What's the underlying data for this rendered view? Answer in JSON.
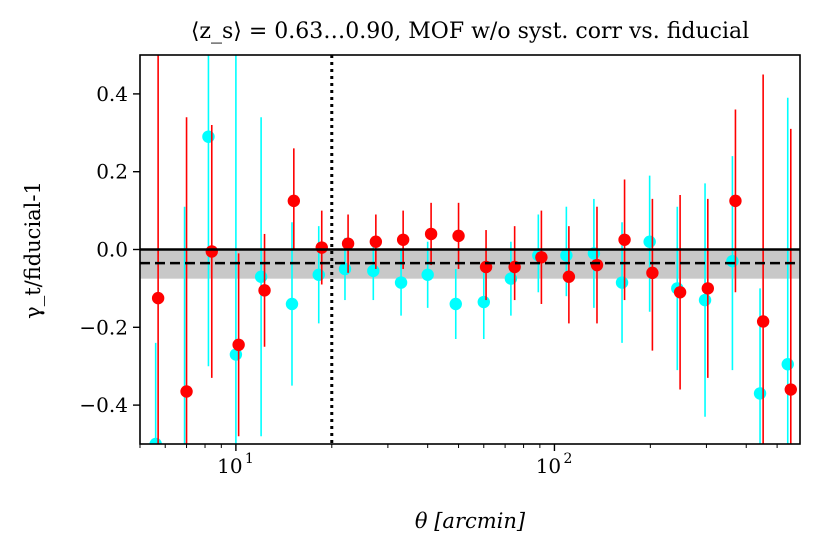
{
  "chart_data": {
    "type": "scatter",
    "title": "⟨z_s⟩ = 0.63…0.90, MOF w/o syst. corr vs. fiducial",
    "xlabel": "θ [arcmin]",
    "ylabel": "γ_t/fiducial-1",
    "xscale": "log",
    "xlim": [
      5.0,
      590
    ],
    "ylim": [
      -0.5,
      0.5
    ],
    "x_ticks": [
      {
        "value": 10,
        "label": "10",
        "sup": "1"
      },
      {
        "value": 100,
        "label": "10",
        "sup": "2"
      }
    ],
    "y_ticks": [
      {
        "value": 0.4,
        "label": "0.4"
      },
      {
        "value": 0.2,
        "label": "0.2"
      },
      {
        "value": 0.0,
        "label": "0.0"
      },
      {
        "value": -0.2,
        "label": "−0.2"
      },
      {
        "value": -0.4,
        "label": "−0.4"
      }
    ],
    "reference_lines": {
      "zero_solid": 0.0,
      "mean_dashed": -0.035,
      "vertical_dotted_x": 20.0
    },
    "band": {
      "y_low": -0.075,
      "y_high": 0.0,
      "color": "#c8c8c8"
    },
    "series": [
      {
        "color": "#00ffff",
        "points": [
          {
            "x": 5.6,
            "y": -0.5,
            "lo": -0.6,
            "hi": -0.24
          },
          {
            "x": 6.9,
            "y": -0.55,
            "lo": -0.6,
            "hi": 0.11
          },
          {
            "x": 8.2,
            "y": 0.29,
            "lo": -0.3,
            "hi": 0.6
          },
          {
            "x": 10.0,
            "y": -0.27,
            "lo": -0.6,
            "hi": 0.6
          },
          {
            "x": 12.0,
            "y": -0.07,
            "lo": -0.48,
            "hi": 0.34
          },
          {
            "x": 15.0,
            "y": -0.14,
            "lo": -0.35,
            "hi": 0.07
          },
          {
            "x": 18.2,
            "y": -0.065,
            "lo": -0.19,
            "hi": 0.06
          },
          {
            "x": 22.0,
            "y": -0.05,
            "lo": -0.13,
            "hi": 0.03
          },
          {
            "x": 27.0,
            "y": -0.055,
            "lo": -0.13,
            "hi": 0.02
          },
          {
            "x": 33.0,
            "y": -0.085,
            "lo": -0.17,
            "hi": 0.0
          },
          {
            "x": 40.0,
            "y": -0.065,
            "lo": -0.15,
            "hi": 0.02
          },
          {
            "x": 49.0,
            "y": -0.14,
            "lo": -0.23,
            "hi": -0.05
          },
          {
            "x": 60.0,
            "y": -0.135,
            "lo": -0.23,
            "hi": -0.04
          },
          {
            "x": 73.0,
            "y": -0.075,
            "lo": -0.17,
            "hi": 0.02
          },
          {
            "x": 89.0,
            "y": -0.015,
            "lo": -0.11,
            "hi": 0.09
          },
          {
            "x": 109.0,
            "y": -0.015,
            "lo": -0.12,
            "hi": 0.11
          },
          {
            "x": 133.0,
            "y": -0.01,
            "lo": -0.15,
            "hi": 0.13
          },
          {
            "x": 163.0,
            "y": -0.085,
            "lo": -0.24,
            "hi": 0.07
          },
          {
            "x": 199.0,
            "y": 0.02,
            "lo": -0.16,
            "hi": 0.19
          },
          {
            "x": 243.0,
            "y": -0.1,
            "lo": -0.31,
            "hi": 0.11
          },
          {
            "x": 297.0,
            "y": -0.13,
            "lo": -0.43,
            "hi": 0.17
          },
          {
            "x": 362.0,
            "y": -0.03,
            "lo": -0.31,
            "hi": 0.24
          },
          {
            "x": 442.0,
            "y": -0.37,
            "lo": -0.6,
            "hi": -0.1
          },
          {
            "x": 540.0,
            "y": -0.295,
            "lo": -0.6,
            "hi": 0.39
          }
        ]
      },
      {
        "color": "#ff0000",
        "points": [
          {
            "x": 5.7,
            "y": -0.125,
            "lo": -0.6,
            "hi": 0.6
          },
          {
            "x": 7.0,
            "y": -0.365,
            "lo": -0.6,
            "hi": 0.34
          },
          {
            "x": 8.4,
            "y": -0.005,
            "lo": -0.33,
            "hi": 0.32
          },
          {
            "x": 10.2,
            "y": -0.245,
            "lo": -0.48,
            "hi": -0.01
          },
          {
            "x": 12.3,
            "y": -0.105,
            "lo": -0.25,
            "hi": 0.04
          },
          {
            "x": 15.2,
            "y": 0.125,
            "lo": 0.0,
            "hi": 0.26
          },
          {
            "x": 18.6,
            "y": 0.005,
            "lo": -0.09,
            "hi": 0.1
          },
          {
            "x": 22.5,
            "y": 0.015,
            "lo": -0.06,
            "hi": 0.09
          },
          {
            "x": 27.5,
            "y": 0.02,
            "lo": -0.05,
            "hi": 0.09
          },
          {
            "x": 33.5,
            "y": 0.025,
            "lo": -0.05,
            "hi": 0.1
          },
          {
            "x": 41.0,
            "y": 0.04,
            "lo": -0.04,
            "hi": 0.12
          },
          {
            "x": 50.0,
            "y": 0.035,
            "lo": -0.05,
            "hi": 0.12
          },
          {
            "x": 61.0,
            "y": -0.045,
            "lo": -0.13,
            "hi": 0.05
          },
          {
            "x": 75.0,
            "y": -0.045,
            "lo": -0.13,
            "hi": 0.06
          },
          {
            "x": 91.0,
            "y": -0.02,
            "lo": -0.14,
            "hi": 0.1
          },
          {
            "x": 111.0,
            "y": -0.07,
            "lo": -0.19,
            "hi": 0.06
          },
          {
            "x": 136.0,
            "y": -0.04,
            "lo": -0.19,
            "hi": 0.11
          },
          {
            "x": 166.0,
            "y": 0.025,
            "lo": -0.13,
            "hi": 0.18
          },
          {
            "x": 203.0,
            "y": -0.06,
            "lo": -0.26,
            "hi": 0.13
          },
          {
            "x": 248.0,
            "y": -0.11,
            "lo": -0.36,
            "hi": 0.14
          },
          {
            "x": 303.0,
            "y": -0.1,
            "lo": -0.33,
            "hi": 0.13
          },
          {
            "x": 370.0,
            "y": 0.125,
            "lo": -0.11,
            "hi": 0.36
          },
          {
            "x": 452.0,
            "y": -0.185,
            "lo": -0.6,
            "hi": 0.45
          },
          {
            "x": 552.0,
            "y": -0.36,
            "lo": -0.6,
            "hi": 0.31
          }
        ]
      }
    ]
  }
}
